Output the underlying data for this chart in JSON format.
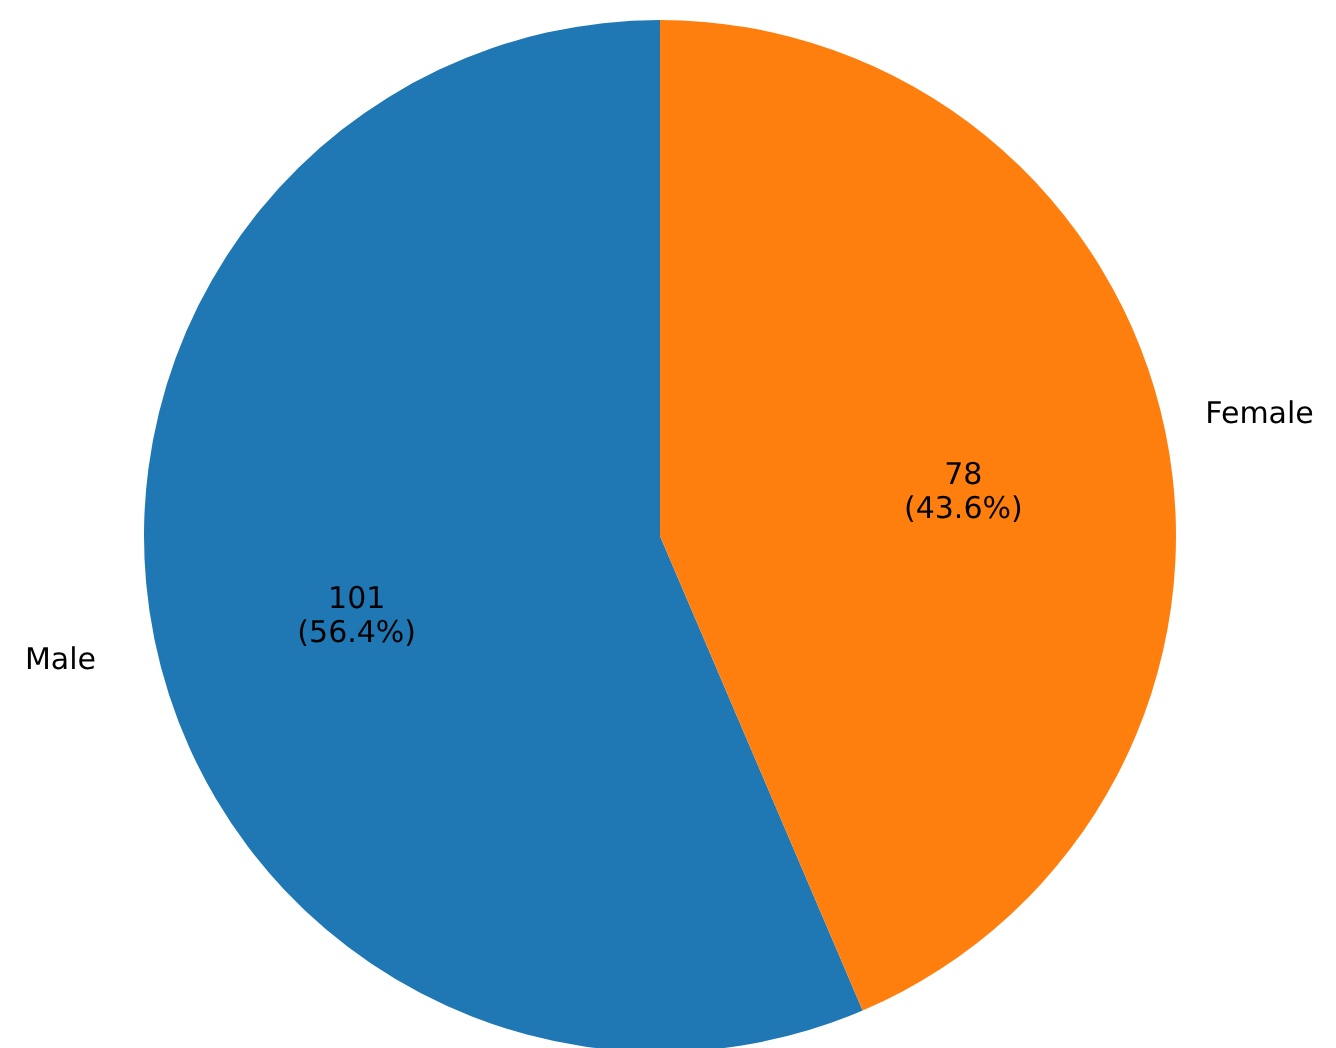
{
  "chart_data": {
    "type": "pie",
    "categories": [
      "Male",
      "Female"
    ],
    "values": [
      101,
      78
    ],
    "colors": [
      "#1f77b4",
      "#ff7f0e"
    ],
    "value_labels": [
      "101\n(56.4%)",
      "78\n(43.6%)"
    ]
  }
}
